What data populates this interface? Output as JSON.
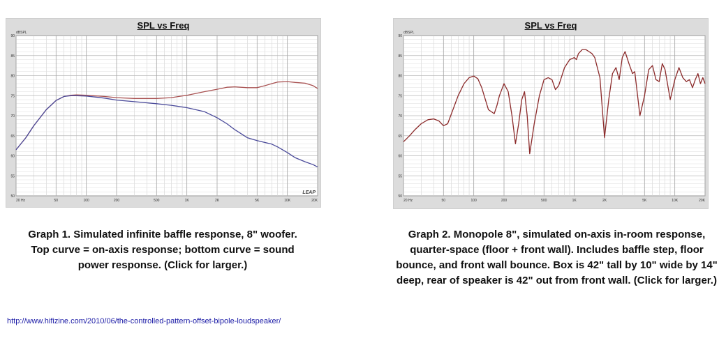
{
  "chart_data": [
    {
      "type": "line",
      "title": "SPL vs Freq",
      "ylabel": "dBSPL",
      "xscale": "log",
      "xlim": [
        20,
        20000
      ],
      "ylim": [
        50,
        90
      ],
      "yticks": [
        90,
        85,
        80,
        75,
        70,
        65,
        60,
        55,
        50
      ],
      "xticks": [
        {
          "value": 20,
          "label": "20 Hz"
        },
        {
          "value": 50,
          "label": "50"
        },
        {
          "value": 100,
          "label": "100"
        },
        {
          "value": 200,
          "label": "200"
        },
        {
          "value": 500,
          "label": "500"
        },
        {
          "value": 1000,
          "label": "1K"
        },
        {
          "value": 2000,
          "label": "2K"
        },
        {
          "value": 5000,
          "label": "5K"
        },
        {
          "value": 10000,
          "label": "10K"
        },
        {
          "value": 20000,
          "label": "20K"
        }
      ],
      "grid": true,
      "watermark": "LEAP",
      "series": [
        {
          "color": "#a85050",
          "x": [
            20,
            25,
            30,
            40,
            50,
            60,
            70,
            80,
            100,
            150,
            200,
            300,
            500,
            700,
            1000,
            1500,
            2000,
            2500,
            3000,
            4000,
            5000,
            6000,
            7000,
            8000,
            10000,
            12000,
            15000,
            18000,
            20000
          ],
          "y": [
            61.5,
            64.5,
            67.5,
            71.5,
            73.8,
            74.8,
            75.1,
            75.2,
            75.1,
            74.8,
            74.5,
            74.3,
            74.3,
            74.5,
            75.1,
            76.0,
            76.6,
            77.1,
            77.2,
            77.0,
            77.0,
            77.5,
            78.0,
            78.4,
            78.5,
            78.3,
            78.1,
            77.5,
            76.8
          ]
        },
        {
          "color": "#4a4a9a",
          "x": [
            20,
            25,
            30,
            40,
            50,
            60,
            70,
            80,
            100,
            150,
            200,
            300,
            500,
            700,
            1000,
            1500,
            2000,
            2500,
            3000,
            4000,
            5000,
            6000,
            7000,
            8000,
            10000,
            12000,
            15000,
            18000,
            20000
          ],
          "y": [
            61.5,
            64.5,
            67.5,
            71.5,
            73.8,
            74.8,
            75.0,
            75.0,
            74.9,
            74.4,
            73.9,
            73.5,
            73.0,
            72.6,
            72.0,
            71.0,
            69.5,
            68.0,
            66.5,
            64.5,
            63.8,
            63.3,
            62.9,
            62.2,
            60.8,
            59.5,
            58.5,
            57.8,
            57.2
          ]
        }
      ]
    },
    {
      "type": "line",
      "title": "SPL vs Freq",
      "ylabel": "dBSPL",
      "xscale": "log",
      "xlim": [
        20,
        20000
      ],
      "ylim": [
        50,
        90
      ],
      "yticks": [
        90,
        85,
        80,
        75,
        70,
        65,
        60,
        55,
        50
      ],
      "xticks": [
        {
          "value": 20,
          "label": "20 Hz"
        },
        {
          "value": 50,
          "label": "50"
        },
        {
          "value": 100,
          "label": "100"
        },
        {
          "value": 200,
          "label": "200"
        },
        {
          "value": 500,
          "label": "500"
        },
        {
          "value": 1000,
          "label": "1K"
        },
        {
          "value": 2000,
          "label": "2K"
        },
        {
          "value": 5000,
          "label": "5K"
        },
        {
          "value": 10000,
          "label": "10K"
        },
        {
          "value": 20000,
          "label": "20K"
        }
      ],
      "grid": true,
      "watermark": "",
      "series": [
        {
          "color": "#8b2a2a",
          "x": [
            20,
            23,
            26,
            30,
            35,
            40,
            45,
            50,
            55,
            60,
            70,
            80,
            90,
            100,
            110,
            120,
            140,
            160,
            170,
            180,
            200,
            220,
            240,
            260,
            280,
            300,
            320,
            340,
            360,
            400,
            450,
            500,
            550,
            600,
            650,
            700,
            800,
            900,
            1000,
            1050,
            1100,
            1200,
            1300,
            1400,
            1500,
            1600,
            1800,
            2000,
            2200,
            2400,
            2600,
            2800,
            3000,
            3200,
            3500,
            3800,
            4000,
            4500,
            5000,
            5500,
            6000,
            6500,
            7000,
            7500,
            8000,
            9000,
            10000,
            11000,
            12000,
            13000,
            14000,
            15000,
            16000,
            17000,
            18000,
            19000,
            20000
          ],
          "y": [
            63.5,
            65.0,
            66.5,
            68.0,
            69.0,
            69.2,
            68.7,
            67.5,
            68.0,
            70.5,
            75.0,
            78.0,
            79.5,
            79.9,
            79.2,
            77.0,
            71.5,
            70.5,
            72.5,
            75.0,
            78.0,
            76.0,
            70.0,
            63.0,
            68.0,
            74.0,
            76.0,
            70.0,
            60.5,
            68.0,
            75.0,
            79.0,
            79.5,
            79.0,
            76.5,
            77.5,
            82.0,
            84.0,
            84.5,
            84.0,
            85.5,
            86.5,
            86.5,
            86.0,
            85.5,
            84.5,
            79.5,
            64.5,
            74.0,
            80.5,
            82.0,
            79.0,
            84.5,
            86.0,
            83.0,
            80.5,
            81.0,
            70.0,
            75.0,
            81.5,
            82.5,
            79.0,
            78.5,
            83.0,
            81.5,
            74.0,
            79.0,
            82.0,
            79.5,
            78.5,
            79.0,
            77.0,
            79.0,
            80.5,
            78.0,
            79.5,
            78.0
          ]
        }
      ]
    }
  ],
  "captions": {
    "graph1": "Graph 1. Simulated infinite baffle response, 8\" woofer. Top curve = on-axis response; bottom curve = sound power response. (Click for larger.)",
    "graph2": "Graph 2. Monopole 8\", simulated on-axis in-room response, quarter-space (floor + front wall). Includes baffle step, floor bounce, and front wall bounce. Box is 42\" tall by 10\" wide by 14\" deep, rear of speaker is 42\" out from front wall. (Click for larger.)"
  },
  "source_url": "http://www.hifizine.com/2010/06/the-controlled-pattern-offset-bipole-loudspeaker/"
}
